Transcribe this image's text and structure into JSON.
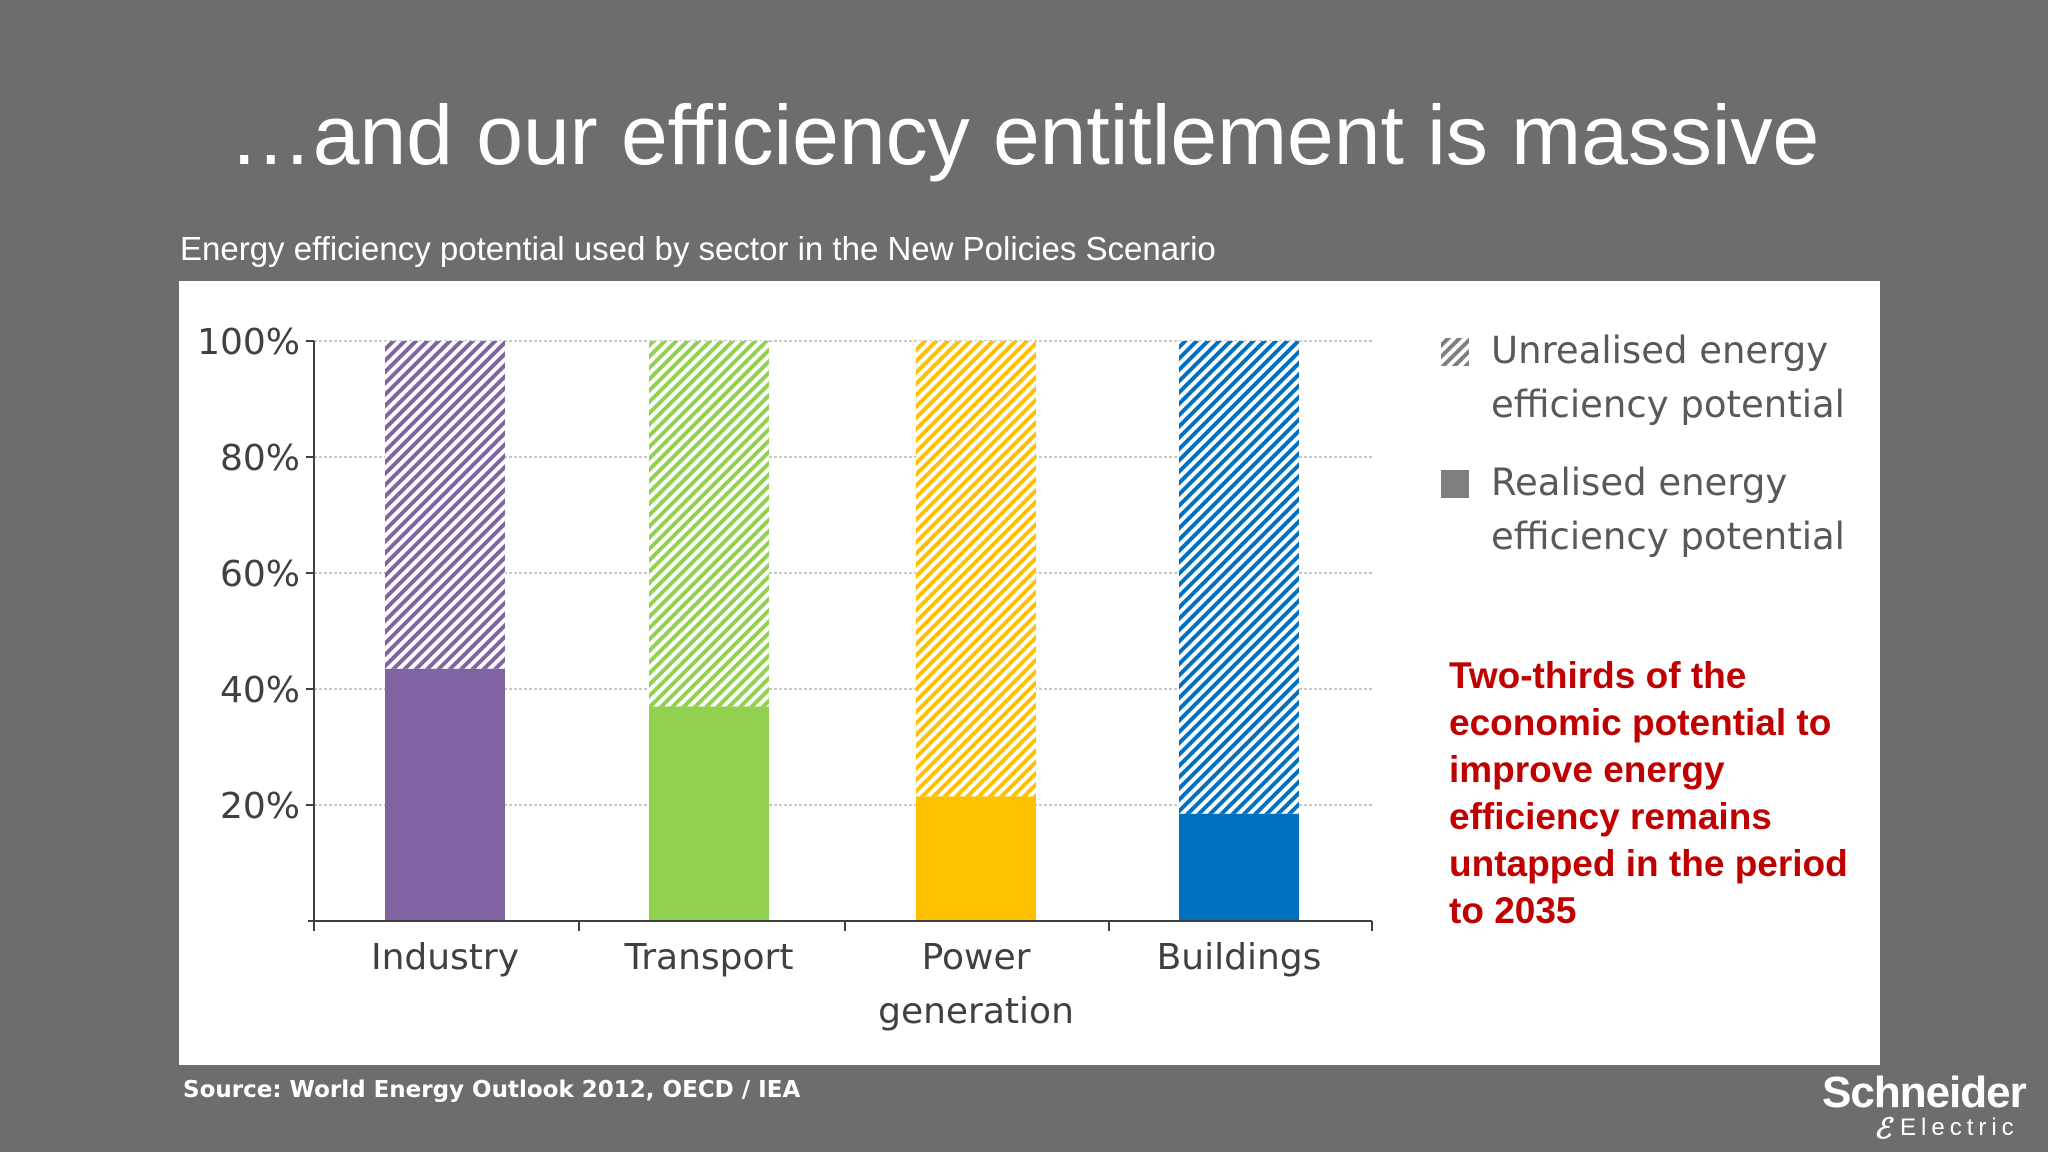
{
  "slide": {
    "title": "…and our efficiency entitlement is massive",
    "subtitle": "Energy efficiency potential used by sector in the New Policies Scenario",
    "callout": "Two-thirds of the economic potential to improve energy efficiency remains untapped in the period to 2035",
    "source": "Source: World Energy Outlook 2012, OECD / IEA",
    "logo": {
      "top": "Schneider",
      "mark": "ℰ",
      "bottom": "Electric"
    }
  },
  "chart_data": {
    "type": "bar",
    "stacked": true,
    "categories": [
      [
        "Industry"
      ],
      [
        "Transport"
      ],
      [
        "Power",
        "generation"
      ],
      [
        "Buildings"
      ]
    ],
    "series": [
      {
        "name": "Realised energy efficiency potential",
        "name_lines": [
          "Realised energy",
          "efficiency potential"
        ],
        "values": [
          43.5,
          37,
          21.5,
          18.5
        ],
        "colors": [
          "#8064a2",
          "#92d050",
          "#ffc000",
          "#0070c0"
        ]
      },
      {
        "name": "Unrealised energy efficiency potential",
        "name_lines": [
          "Unrealised energy",
          "efficiency potential"
        ],
        "values": [
          56.5,
          63,
          78.5,
          81.5
        ],
        "colors": [
          "#8064a2",
          "#92d050",
          "#ffc000",
          "#0070c0"
        ],
        "pattern": "diagonal-hatch"
      }
    ],
    "y_ticks": [
      "100%",
      "80%",
      "60%",
      "40%",
      "20%"
    ],
    "y_tick_values": [
      100,
      80,
      60,
      40,
      20
    ],
    "ylim": [
      0,
      100
    ],
    "grid": true,
    "legend_position": "right",
    "legend_swatch_color": "#7f7f7f"
  }
}
